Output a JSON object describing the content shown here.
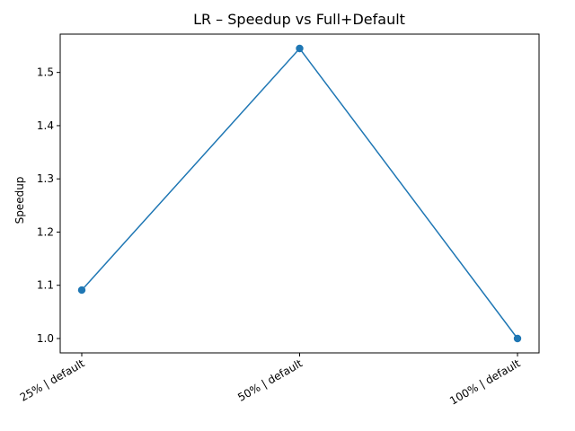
{
  "chart_data": {
    "type": "line",
    "title": "LR – Speedup vs Full+Default",
    "xlabel": "",
    "ylabel": "Speedup",
    "categories": [
      "25% | default",
      "50% | default",
      "100% | default"
    ],
    "series": [
      {
        "values": [
          1.091,
          1.545,
          1.0
        ]
      }
    ],
    "ylim": [
      0.973,
      1.572
    ],
    "yticks": [
      "1.0",
      "1.1",
      "1.2",
      "1.3",
      "1.4",
      "1.5"
    ],
    "grid": false,
    "colors": {
      "line": "#1f77b4",
      "marker": "#1f77b4"
    }
  }
}
